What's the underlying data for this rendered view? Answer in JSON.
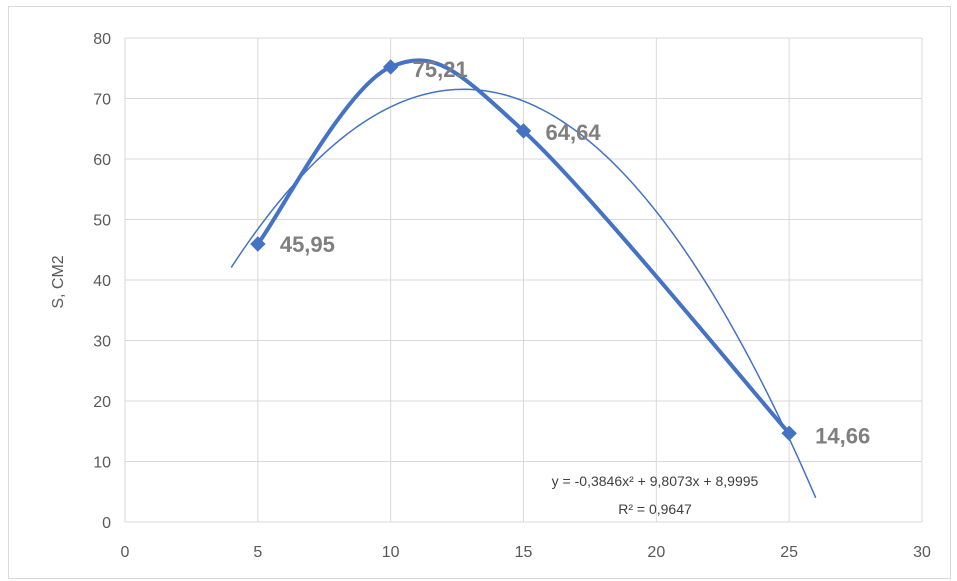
{
  "chart_data": {
    "type": "scatter",
    "title": "",
    "xlabel": "",
    "ylabel": "S, CM2",
    "xlim": [
      0,
      30
    ],
    "ylim": [
      0,
      80
    ],
    "x_ticks": [
      0,
      5,
      10,
      15,
      20,
      25,
      30
    ],
    "y_ticks": [
      0,
      10,
      20,
      30,
      40,
      50,
      60,
      70,
      80
    ],
    "grid": true,
    "legend": "none",
    "series": [
      {
        "x": [
          5,
          10,
          15,
          25
        ],
        "values": [
          45.95,
          75.21,
          64.64,
          14.66
        ],
        "data_labels": [
          "45,95",
          "75,21",
          "64,64",
          "14,66"
        ],
        "marker": "diamond",
        "color": "#4472c4"
      }
    ],
    "trendline": {
      "type": "polynomial",
      "order": 2,
      "coefficients": [
        -0.3846,
        9.8073,
        8.9995
      ],
      "x_range": [
        4,
        26
      ],
      "equation": "y = -0,3846x² + 9,8073x + 8,9995",
      "r_squared": "R² = 0,9647",
      "color": "#4472c4"
    }
  }
}
